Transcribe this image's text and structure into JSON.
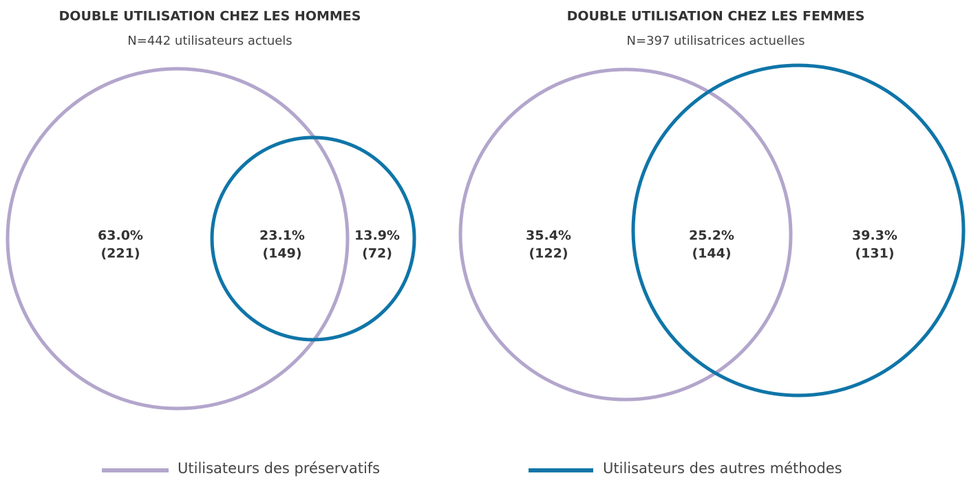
{
  "chart_data": [
    {
      "type": "venn",
      "title": "DOUBLE UTILISATION CHEZ LES HOMMES",
      "subtitle": "N=442 utilisateurs actuels",
      "values": [
        63.0,
        23.1,
        13.9
      ],
      "value_labels": [
        "63.0%",
        "23.1%",
        "13.9%"
      ],
      "counts": [
        221,
        149,
        72
      ],
      "count_labels": [
        "(221)",
        "(149)",
        "(72)"
      ]
    },
    {
      "type": "venn",
      "title": "DOUBLE UTILISATION CHEZ LES FEMMES",
      "subtitle": "N=397 utilisatrices actuelles",
      "values": [
        35.4,
        25.2,
        39.3
      ],
      "value_labels": [
        "35.4%",
        "25.2%",
        "39.3%"
      ],
      "counts": [
        122,
        144,
        131
      ],
      "count_labels": [
        "(122)",
        "(144)",
        "(131)"
      ]
    }
  ],
  "legend": [
    {
      "name": "Utilisateurs des préservatifs",
      "color": "#b3a6cc"
    },
    {
      "name": "Utilisateurs des autres méthodes",
      "color": "#0f75a8"
    }
  ]
}
